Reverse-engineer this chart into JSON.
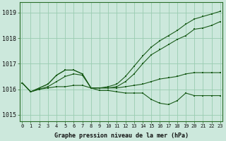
{
  "xlabel": "Graphe pression niveau de la mer (hPa)",
  "background_color": "#cce8dc",
  "grid_color": "#99ccb0",
  "line_color": "#1a5c1a",
  "hours": [
    0,
    1,
    2,
    3,
    4,
    5,
    6,
    7,
    8,
    9,
    10,
    11,
    12,
    13,
    14,
    15,
    16,
    17,
    18,
    19,
    20,
    21,
    22,
    23
  ],
  "series": [
    [
      1016.25,
      1015.9,
      1016.0,
      1016.05,
      1016.1,
      1016.1,
      1016.15,
      1016.15,
      1016.05,
      1015.95,
      1015.95,
      1015.9,
      1015.85,
      1015.85,
      1015.85,
      1015.6,
      1015.45,
      1015.4,
      1015.55,
      1015.85,
      1015.75,
      1015.75,
      1015.75,
      1015.75
    ],
    [
      1016.25,
      1015.9,
      1016.0,
      1016.1,
      1016.3,
      1016.5,
      1016.6,
      1016.55,
      1016.05,
      1016.05,
      1016.05,
      1016.05,
      1016.1,
      1016.15,
      1016.2,
      1016.3,
      1016.4,
      1016.45,
      1016.5,
      1016.6,
      1016.65,
      1016.65,
      1016.65,
      1016.65
    ],
    [
      1016.25,
      1015.9,
      1016.05,
      1016.2,
      1016.55,
      1016.75,
      1016.75,
      1016.6,
      1016.05,
      1016.05,
      1016.05,
      1016.1,
      1016.3,
      1016.6,
      1017.0,
      1017.35,
      1017.55,
      1017.75,
      1017.95,
      1018.1,
      1018.35,
      1018.4,
      1018.5,
      1018.65
    ],
    [
      1016.25,
      1015.9,
      1016.05,
      1016.2,
      1016.55,
      1016.75,
      1016.75,
      1016.6,
      1016.05,
      1016.05,
      1016.1,
      1016.2,
      1016.5,
      1016.9,
      1017.3,
      1017.65,
      1017.9,
      1018.1,
      1018.3,
      1018.55,
      1018.75,
      1018.85,
      1018.95,
      1019.05
    ]
  ],
  "ylim": [
    1014.75,
    1019.4
  ],
  "yticks": [
    1015,
    1016,
    1017,
    1018,
    1019
  ],
  "xticks": [
    0,
    1,
    2,
    3,
    4,
    5,
    6,
    7,
    8,
    9,
    10,
    11,
    12,
    13,
    14,
    15,
    16,
    17,
    18,
    19,
    20,
    21,
    22,
    23
  ]
}
